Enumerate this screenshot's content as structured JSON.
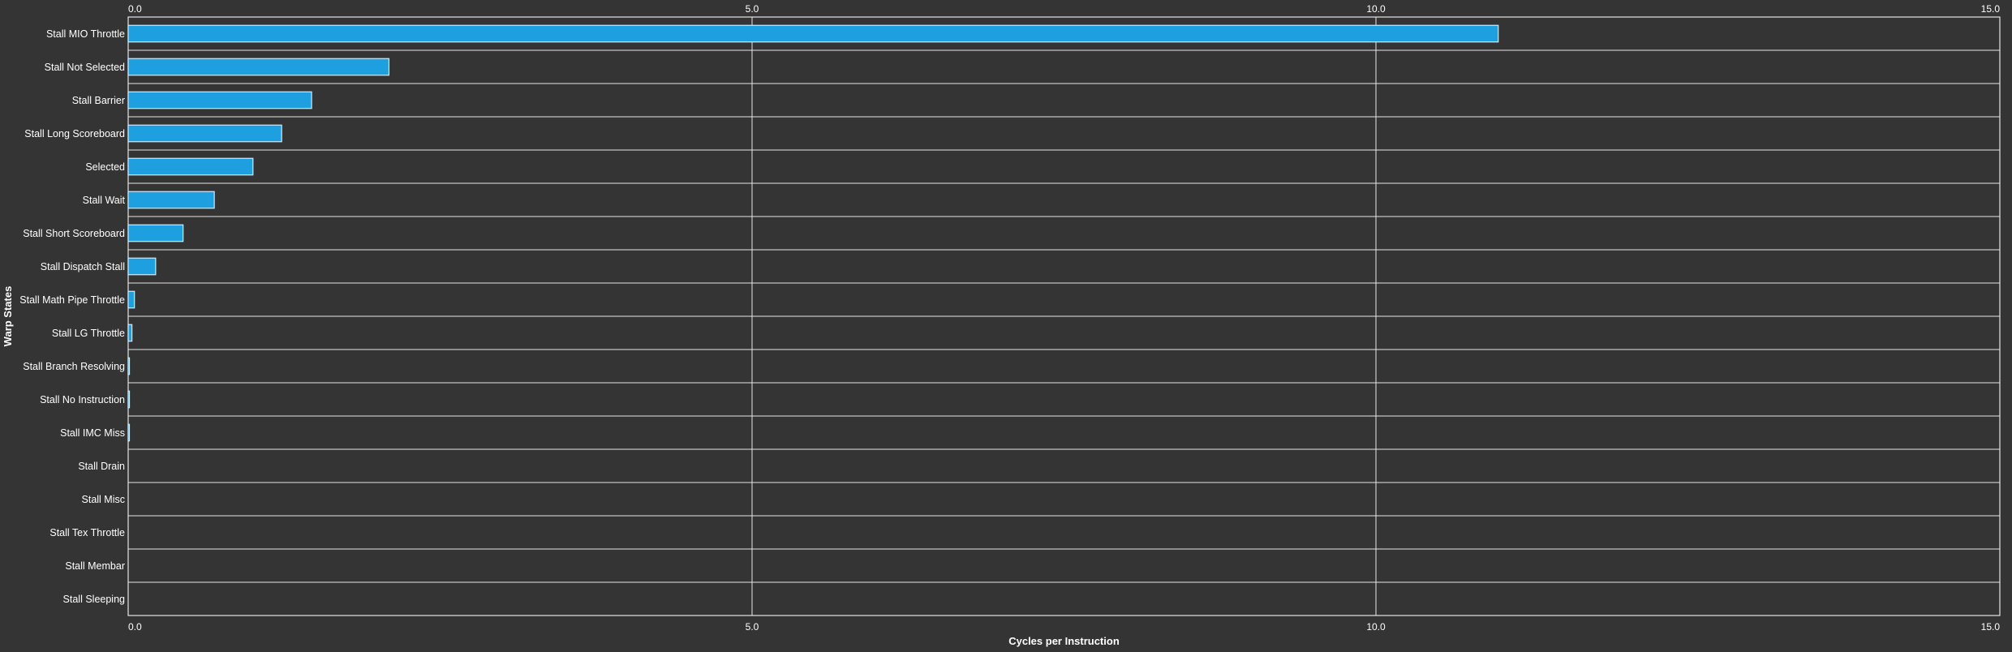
{
  "chart_data": {
    "type": "bar",
    "orientation": "horizontal",
    "xlabel": "Cycles per Instruction",
    "ylabel": "Warp States",
    "xlim": [
      0,
      15
    ],
    "xticks": [
      "0.0",
      "5.0",
      "10.0",
      "15.0"
    ],
    "x_axis_ticks_position": "top and bottom",
    "grid": true,
    "colors": {
      "background": "#343434",
      "bar_fill": "#1E9FDF",
      "bar_stroke": "#CDEBFF",
      "grid": "#E6E6E6",
      "text": "#FFFFFF"
    },
    "categories": [
      "Stall MIO Throttle",
      "Stall Not Selected",
      "Stall Barrier",
      "Stall Long Scoreboard",
      "Selected",
      "Stall Wait",
      "Stall Short Scoreboard",
      "Stall Dispatch Stall",
      "Stall Math Pipe Throttle",
      "Stall LG Throttle",
      "Stall Branch Resolving",
      "Stall No Instruction",
      "Stall IMC Miss",
      "Stall Drain",
      "Stall Misc",
      "Stall Tex Throttle",
      "Stall Membar",
      "Stall Sleeping"
    ],
    "values": [
      10.98,
      2.09,
      1.47,
      1.23,
      1.0,
      0.69,
      0.44,
      0.22,
      0.05,
      0.03,
      0.01,
      0.01,
      0.005,
      0,
      0,
      0,
      0,
      0
    ]
  }
}
